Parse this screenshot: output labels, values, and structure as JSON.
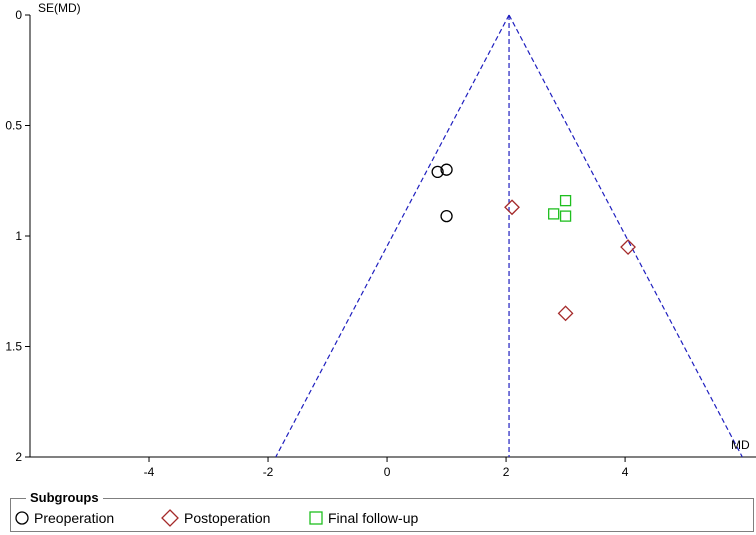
{
  "chart_data": {
    "type": "scatter",
    "title": "",
    "xlabel": "MD",
    "ylabel": "SE(MD)",
    "xlim": [
      -6,
      6.2
    ],
    "ylim": [
      0,
      2
    ],
    "y_inverted": true,
    "x_ticks": [
      -4,
      -2,
      0,
      2,
      4
    ],
    "y_ticks": [
      0,
      0.5,
      1,
      1.5,
      2
    ],
    "x_tick_labels": [
      "-4",
      "-2",
      "0",
      "2",
      "4"
    ],
    "y_tick_labels": [
      "0",
      "0.5",
      "1",
      "1.5",
      "2"
    ],
    "pooled_estimate": 2.05,
    "funnel_line_color": "#1f1fbf",
    "series": [
      {
        "name": "Preoperation",
        "marker": "circle",
        "color": "#000000",
        "points": [
          {
            "x": 0.85,
            "y": 0.71
          },
          {
            "x": 1.0,
            "y": 0.7
          },
          {
            "x": 1.0,
            "y": 0.91
          }
        ]
      },
      {
        "name": "Postoperation",
        "marker": "diamond",
        "color": "#a52a2a",
        "points": [
          {
            "x": 2.1,
            "y": 0.87
          },
          {
            "x": 4.05,
            "y": 1.05
          },
          {
            "x": 3.0,
            "y": 1.35
          }
        ]
      },
      {
        "name": "Final follow-up",
        "marker": "square",
        "color": "#1fbf1f",
        "points": [
          {
            "x": 3.0,
            "y": 0.84
          },
          {
            "x": 2.8,
            "y": 0.9
          },
          {
            "x": 3.0,
            "y": 0.91
          }
        ]
      }
    ]
  },
  "legend": {
    "title": "Subgroups",
    "items": [
      {
        "label": "Preoperation",
        "icon": "circle-marker-icon"
      },
      {
        "label": "Postoperation",
        "icon": "diamond-marker-icon"
      },
      {
        "label": "Final follow-up",
        "icon": "square-marker-icon"
      }
    ]
  }
}
